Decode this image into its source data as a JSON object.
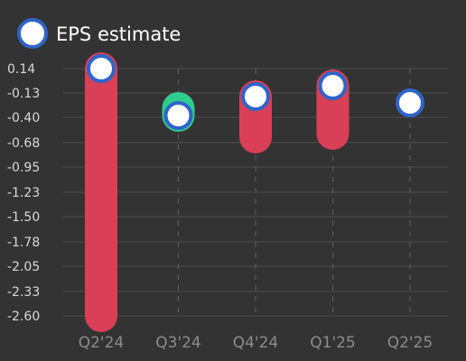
{
  "legend": {
    "label": "EPS estimate"
  },
  "colors": {
    "background": "#333333",
    "grid": "#4d4d4d",
    "vline": "#5e5e5e",
    "miss": "#d93f56",
    "beat": "#2ecc8f",
    "estimate_fill": "#ffffff",
    "estimate_stroke": "#2f64c8"
  },
  "chart_data": {
    "type": "bar",
    "categories": [
      "Q2'24",
      "Q3'24",
      "Q4'24",
      "Q1'25",
      "Q2'25"
    ],
    "yticks": [
      "0.14",
      "-0.13",
      "-0.40",
      "-0.68",
      "-0.95",
      "-1.23",
      "-1.50",
      "-1.78",
      "-2.05",
      "-2.33",
      "-2.60"
    ],
    "ylim": [
      -2.6,
      0.14
    ],
    "grid": true,
    "legend_position": "top-left",
    "series": [
      {
        "name": "EPS estimate",
        "values": [
          0.14,
          -0.38,
          -0.17,
          -0.05,
          -0.24
        ]
      },
      {
        "values": [
          -2.6,
          -0.3,
          -0.62,
          -0.58,
          null
        ]
      }
    ]
  }
}
